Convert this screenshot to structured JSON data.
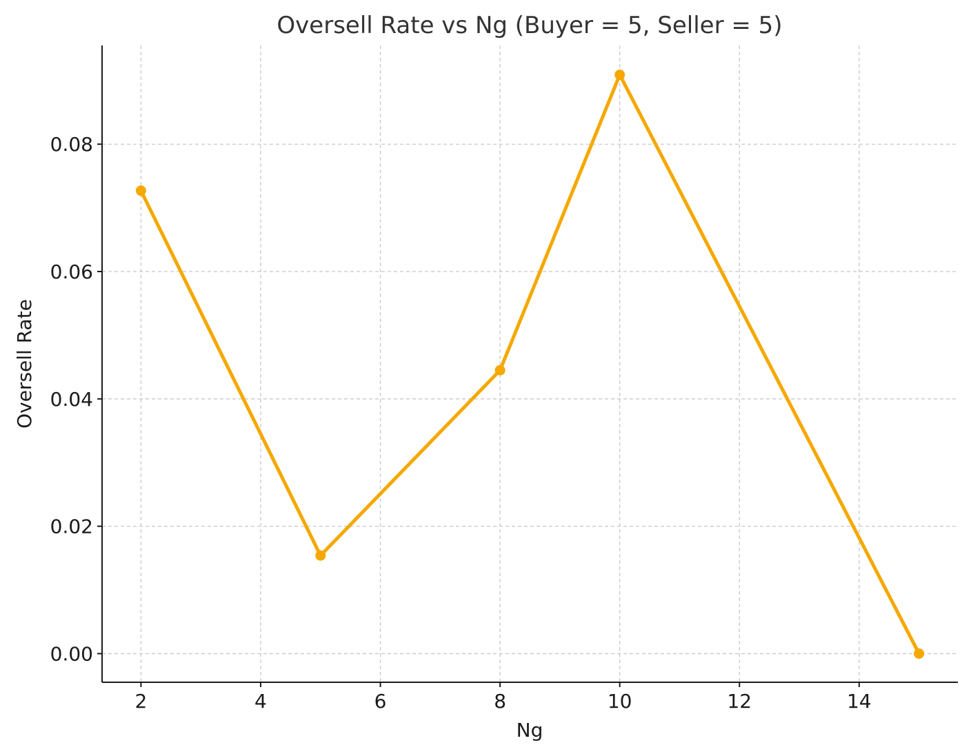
{
  "chart_data": {
    "type": "line",
    "title": "Oversell Rate vs Ng (Buyer = 5, Seller = 5)",
    "xlabel": "Ng",
    "ylabel": "Oversell Rate",
    "xlim": [
      1.35,
      15.65
    ],
    "ylim": [
      -0.0045,
      0.0955
    ],
    "xticks": [
      2,
      4,
      6,
      8,
      10,
      12,
      14
    ],
    "xtick_labels": [
      "2",
      "4",
      "6",
      "8",
      "10",
      "12",
      "14"
    ],
    "yticks": [
      0.0,
      0.02,
      0.04,
      0.06,
      0.08
    ],
    "ytick_labels": [
      "0.00",
      "0.02",
      "0.04",
      "0.06",
      "0.08"
    ],
    "grid": true,
    "legend": "none",
    "series": [
      {
        "color": "#f5a800",
        "marker": "circle",
        "x": [
          2,
          5,
          8,
          10,
          15
        ],
        "y": [
          0.0727,
          0.0154,
          0.0445,
          0.0909,
          0.0
        ]
      }
    ]
  }
}
